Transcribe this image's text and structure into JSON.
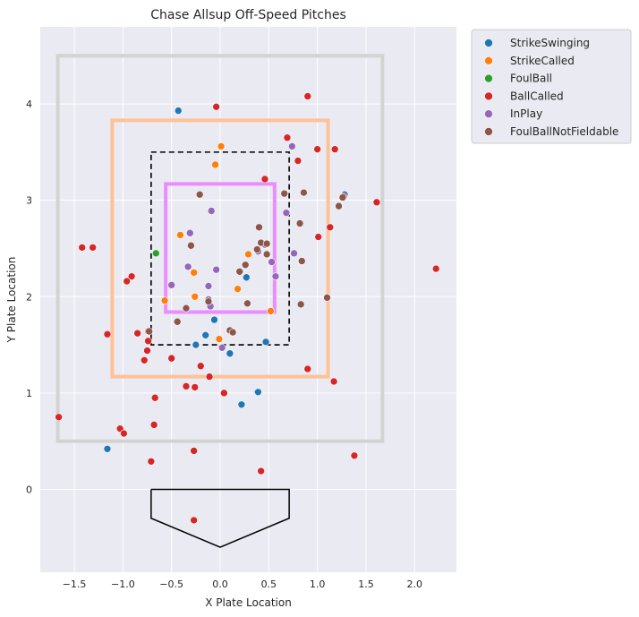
{
  "chart_data": {
    "type": "scatter",
    "title": "Chase Allsup Off-Speed Pitches",
    "xlabel": "X Plate Location",
    "ylabel": "Y Plate Location",
    "xlim": [
      -1.85,
      2.43
    ],
    "ylim": [
      -0.86,
      4.8
    ],
    "x_ticks": [
      -1.5,
      -1.0,
      -0.5,
      0.0,
      0.5,
      1.0,
      1.5,
      2.0
    ],
    "x_tick_labels": [
      "−1.5",
      "−1.0",
      "−0.5",
      "0.0",
      "0.5",
      "1.0",
      "1.5",
      "2.0"
    ],
    "y_ticks": [
      0,
      1,
      2,
      3,
      4
    ],
    "y_tick_labels": [
      "0",
      "1",
      "2",
      "3",
      "4"
    ],
    "grid": true,
    "legend_position": "outside-top-right",
    "zones": [
      {
        "name": "outer",
        "x": [
          -1.67,
          1.67
        ],
        "y": [
          0.5,
          4.5
        ],
        "color": "#d3d3d3",
        "style": "solid"
      },
      {
        "name": "shadow",
        "x": [
          -1.11,
          1.11
        ],
        "y": [
          1.17,
          3.83
        ],
        "color": "#ffc196",
        "style": "solid"
      },
      {
        "name": "strike-zone",
        "x": [
          -0.71,
          0.71
        ],
        "y": [
          1.5,
          3.5
        ],
        "color": "#000000",
        "style": "dashed"
      },
      {
        "name": "heart",
        "x": [
          -0.56,
          0.56
        ],
        "y": [
          1.84,
          3.17
        ],
        "color": "#e98dff",
        "style": "solid"
      }
    ],
    "home_plate": {
      "x": [
        -0.71,
        0.71,
        0.71,
        0.0,
        -0.71,
        -0.71
      ],
      "y": [
        0.0,
        0.0,
        -0.3,
        -0.6,
        -0.3,
        0.0
      ]
    },
    "series": [
      {
        "name": "StrikeSwinging",
        "color": "#1f77b4",
        "x": [
          -0.43,
          1.28,
          -1.16,
          0.39,
          0.22,
          0.1,
          -0.15,
          -0.25,
          -0.06,
          0.27,
          0.47
        ],
        "y": [
          3.93,
          3.06,
          0.42,
          1.01,
          0.88,
          1.41,
          1.6,
          1.5,
          1.76,
          2.2,
          1.53
        ]
      },
      {
        "name": "StrikeCalled",
        "color": "#ff7f0e",
        "x": [
          0.01,
          -0.05,
          -0.41,
          -0.27,
          0.29,
          0.18,
          -0.26,
          -0.57,
          -0.01,
          0.52
        ],
        "y": [
          3.56,
          3.37,
          2.64,
          2.25,
          2.44,
          2.08,
          2.0,
          1.96,
          1.56,
          1.85
        ]
      },
      {
        "name": "FoulBall",
        "color": "#2ca02c",
        "x": [
          -0.66
        ],
        "y": [
          2.45
        ]
      },
      {
        "name": "BallCalled",
        "color": "#d62728",
        "x": [
          -0.04,
          0.9,
          0.69,
          0.8,
          1.18,
          1.0,
          1.27,
          1.61,
          2.22,
          0.46,
          1.13,
          1.01,
          -1.42,
          -1.31,
          -0.91,
          -0.96,
          -1.16,
          -1.66,
          -0.74,
          -0.74,
          -0.85,
          -0.75,
          -0.78,
          -0.2,
          -0.5,
          -0.35,
          -0.26,
          0.04,
          -0.11,
          1.17,
          0.9,
          -0.67,
          -0.68,
          -1.03,
          -0.99,
          -0.71,
          -0.27,
          0.42,
          -0.27,
          1.1,
          1.38
        ],
        "y": [
          3.97,
          4.08,
          3.65,
          3.41,
          3.53,
          3.53,
          3.04,
          2.98,
          2.29,
          3.22,
          2.72,
          2.62,
          2.51,
          2.51,
          2.21,
          2.16,
          1.61,
          0.75,
          1.64,
          1.54,
          1.62,
          1.44,
          1.34,
          1.28,
          1.36,
          1.07,
          1.06,
          1.0,
          1.17,
          1.12,
          1.25,
          0.95,
          0.67,
          0.63,
          0.58,
          0.29,
          0.4,
          0.19,
          -0.32,
          1.99,
          0.35
        ]
      },
      {
        "name": "InPlay",
        "color": "#9467bd",
        "x": [
          0.74,
          0.68,
          -0.09,
          -0.31,
          0.46,
          0.39,
          0.53,
          0.57,
          0.76,
          -0.33,
          -0.5,
          -0.04,
          -0.12,
          -0.12,
          -0.1,
          0.02
        ],
        "y": [
          3.56,
          2.87,
          2.89,
          2.66,
          2.54,
          2.47,
          2.36,
          2.21,
          2.45,
          2.31,
          2.12,
          2.28,
          2.11,
          1.97,
          1.9,
          1.47
        ]
      },
      {
        "name": "FoulBallNotFieldable",
        "color": "#8c564b",
        "x": [
          -0.21,
          0.66,
          0.86,
          1.22,
          1.26,
          0.82,
          0.4,
          0.42,
          0.48,
          0.38,
          0.48,
          -0.3,
          0.84,
          0.2,
          0.26,
          0.28,
          -0.35,
          -0.44,
          0.1,
          0.13,
          -0.73,
          0.83,
          -0.12,
          1.1
        ],
        "y": [
          3.06,
          3.07,
          3.08,
          2.94,
          3.03,
          2.76,
          2.72,
          2.56,
          2.44,
          2.49,
          2.55,
          2.53,
          2.37,
          2.26,
          2.33,
          1.93,
          1.88,
          1.74,
          1.65,
          1.63,
          1.64,
          1.92,
          1.95,
          1.99
        ]
      }
    ]
  }
}
